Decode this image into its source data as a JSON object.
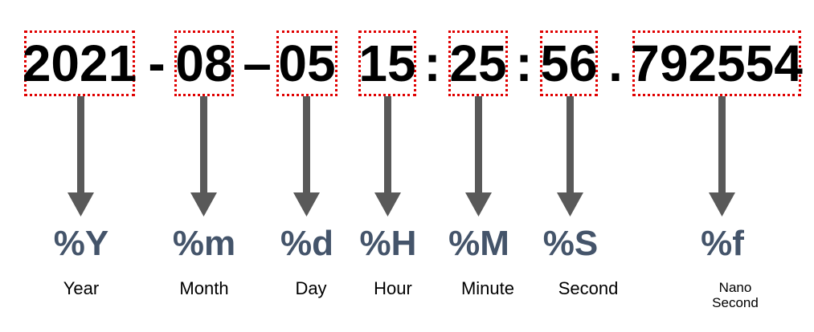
{
  "segments": [
    {
      "value": "2021",
      "code": "%Y",
      "label": "Year"
    },
    {
      "value": "08",
      "code": "%m",
      "label": "Month"
    },
    {
      "value": "05",
      "code": "%d",
      "label": "Day"
    },
    {
      "value": "15",
      "code": "%H",
      "label": "Hour"
    },
    {
      "value": "25",
      "code": "%M",
      "label": "Minute"
    },
    {
      "value": "56",
      "code": "%S",
      "label": "Second"
    },
    {
      "value": "792554",
      "code": "%f",
      "label_line1": "Nano",
      "label_line2": "Second"
    }
  ],
  "separators": [
    "-",
    "–",
    ":",
    ":",
    "."
  ],
  "colors": {
    "box_border": "#e00000",
    "arrow": "#595959",
    "code_text": "#44546a"
  }
}
